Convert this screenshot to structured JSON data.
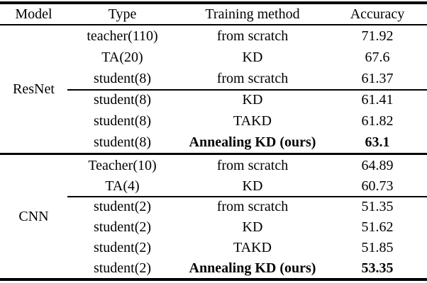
{
  "table": {
    "headers": [
      "Model",
      "Type",
      "Training method",
      "Accuracy"
    ],
    "groups": [
      {
        "model": "ResNet",
        "rows": [
          {
            "type": "teacher(110)",
            "method": "from scratch",
            "accuracy": "71.92",
            "bold": false
          },
          {
            "type": "TA(20)",
            "method": "KD",
            "accuracy": "67.6",
            "bold": false
          },
          {
            "type": "student(8)",
            "method": "from scratch",
            "accuracy": "61.37",
            "bold": false
          },
          {
            "type": "student(8)",
            "method": "KD",
            "accuracy": "61.41",
            "bold": false
          },
          {
            "type": "student(8)",
            "method": "TAKD",
            "accuracy": "61.82",
            "bold": false
          },
          {
            "type": "student(8)",
            "method": "Annealing KD (ours)",
            "accuracy": "63.1",
            "bold": true
          }
        ]
      },
      {
        "model": "CNN",
        "rows": [
          {
            "type": "Teacher(10)",
            "method": "from scratch",
            "accuracy": "64.89",
            "bold": false
          },
          {
            "type": "TA(4)",
            "method": "KD",
            "accuracy": "60.73",
            "bold": false
          },
          {
            "type": "student(2)",
            "method": "from scratch",
            "accuracy": "51.35",
            "bold": false
          },
          {
            "type": "student(2)",
            "method": "KD",
            "accuracy": "51.62",
            "bold": false
          },
          {
            "type": "student(2)",
            "method": "TAKD",
            "accuracy": "51.85",
            "bold": false
          },
          {
            "type": "student(2)",
            "method": "Annealing KD (ours)",
            "accuracy": "53.35",
            "bold": true
          }
        ]
      }
    ]
  },
  "style": {
    "rule_color": "#000000",
    "background": "#ffffff"
  }
}
